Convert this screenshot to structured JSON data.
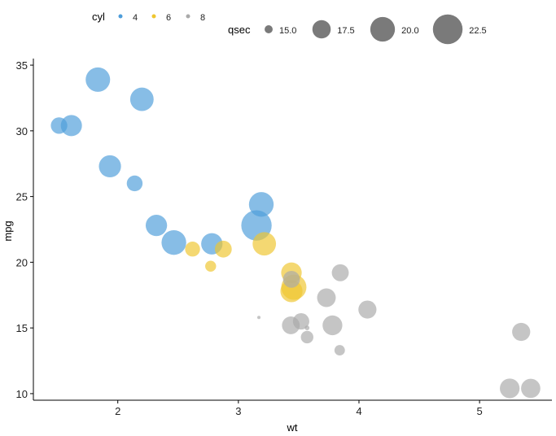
{
  "chart_data": {
    "type": "scatter",
    "title": "",
    "xlabel": "wt",
    "ylabel": "mpg",
    "xlim": [
      1.3,
      5.6
    ],
    "ylim": [
      9.5,
      35.5
    ],
    "xticks": [
      2,
      3,
      4,
      5
    ],
    "yticks": [
      10,
      15,
      20,
      25,
      30,
      35
    ],
    "grid": false,
    "color_legend": {
      "title": "cyl",
      "entries": [
        {
          "label": "4",
          "color": "#4E9DDA"
        },
        {
          "label": "6",
          "color": "#EFC62F"
        },
        {
          "label": "8",
          "color": "#AAAAAA"
        }
      ]
    },
    "size_legend": {
      "title": "qsec",
      "entries": [
        {
          "label": "15.0",
          "value": 15.0
        },
        {
          "label": "17.5",
          "value": 17.5
        },
        {
          "label": "20.0",
          "value": 20.0
        },
        {
          "label": "22.5",
          "value": 22.5
        }
      ]
    },
    "legend_position": "top",
    "series": [
      {
        "name": "4",
        "color": "#4E9DDA",
        "points": [
          {
            "x": 2.32,
            "y": 22.8,
            "size": 18.61
          },
          {
            "x": 3.19,
            "y": 24.4,
            "size": 20.0
          },
          {
            "x": 3.15,
            "y": 22.8,
            "size": 22.9
          },
          {
            "x": 2.2,
            "y": 32.4,
            "size": 19.47
          },
          {
            "x": 1.615,
            "y": 30.4,
            "size": 18.52
          },
          {
            "x": 1.835,
            "y": 33.9,
            "size": 19.9
          },
          {
            "x": 2.465,
            "y": 21.5,
            "size": 20.01
          },
          {
            "x": 1.935,
            "y": 27.3,
            "size": 18.9
          },
          {
            "x": 2.14,
            "y": 26.0,
            "size": 16.7
          },
          {
            "x": 1.513,
            "y": 30.4,
            "size": 16.9
          },
          {
            "x": 2.78,
            "y": 21.4,
            "size": 18.6
          }
        ]
      },
      {
        "name": "6",
        "color": "#EFC62F",
        "points": [
          {
            "x": 2.62,
            "y": 21.0,
            "size": 16.46
          },
          {
            "x": 2.875,
            "y": 21.0,
            "size": 17.02
          },
          {
            "x": 3.215,
            "y": 21.4,
            "size": 19.44
          },
          {
            "x": 3.46,
            "y": 18.1,
            "size": 20.22
          },
          {
            "x": 3.44,
            "y": 19.2,
            "size": 18.3
          },
          {
            "x": 3.44,
            "y": 17.8,
            "size": 18.9
          },
          {
            "x": 2.77,
            "y": 19.7,
            "size": 15.5
          }
        ]
      },
      {
        "name": "8",
        "color": "#AAAAAA",
        "points": [
          {
            "x": 3.44,
            "y": 18.7,
            "size": 17.02
          },
          {
            "x": 3.57,
            "y": 14.3,
            "size": 15.84
          },
          {
            "x": 4.07,
            "y": 16.4,
            "size": 17.4
          },
          {
            "x": 3.73,
            "y": 17.3,
            "size": 17.6
          },
          {
            "x": 3.78,
            "y": 15.2,
            "size": 18.0
          },
          {
            "x": 5.25,
            "y": 10.4,
            "size": 17.98
          },
          {
            "x": 5.424,
            "y": 10.4,
            "size": 17.82
          },
          {
            "x": 5.345,
            "y": 14.7,
            "size": 17.42
          },
          {
            "x": 3.52,
            "y": 15.5,
            "size": 16.87
          },
          {
            "x": 3.435,
            "y": 15.2,
            "size": 17.3
          },
          {
            "x": 3.84,
            "y": 13.3,
            "size": 15.41
          },
          {
            "x": 3.845,
            "y": 19.2,
            "size": 17.05
          },
          {
            "x": 3.17,
            "y": 15.8,
            "size": 14.5
          },
          {
            "x": 3.57,
            "y": 15.0,
            "size": 14.6
          }
        ]
      }
    ]
  }
}
